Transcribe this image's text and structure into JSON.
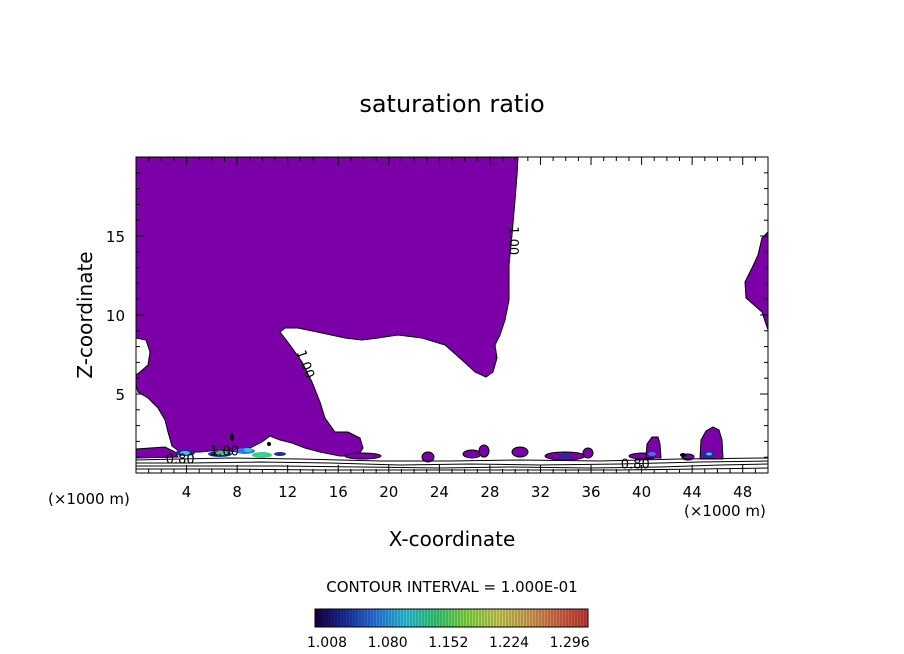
{
  "chart_data": {
    "type": "heatmap",
    "title": "saturation ratio",
    "xlabel": "X-coordinate",
    "ylabel": "Z-coordinate",
    "x_unit_left": "(×1000 m)",
    "x_unit_right": "(×1000 m)",
    "xlim": [
      0,
      50
    ],
    "ylim": [
      0,
      20
    ],
    "x_ticks": [
      4,
      8,
      12,
      16,
      20,
      24,
      28,
      32,
      36,
      40,
      44,
      48
    ],
    "x_tick_labels": [
      "4",
      "8",
      "12",
      "16",
      "20",
      "24",
      "28",
      "32",
      "36",
      "40",
      "44",
      "48"
    ],
    "y_ticks": [
      5,
      10,
      15
    ],
    "y_tick_labels": [
      "5",
      "10",
      "15"
    ],
    "contour_interval_text": "CONTOUR INTERVAL = 1.000E-01",
    "contour_labels": [
      {
        "text": "1.00",
        "x": 29.5,
        "z": 14.7,
        "rotate": 90
      },
      {
        "text": "1.00",
        "x": 13.1,
        "z": 6.8,
        "rotate": 70
      },
      {
        "text": "1.00",
        "x": 7.0,
        "z": 1.1,
        "rotate": 0
      },
      {
        "text": "0.80",
        "x": 3.5,
        "z": 0.6,
        "rotate": 0
      },
      {
        "text": "0.80",
        "x": 39.5,
        "z": 0.3,
        "rotate": 0
      }
    ],
    "fill_color": "#7b00a8",
    "colorbar": {
      "min": 1.008,
      "max": 1.332,
      "tick_values": [
        1.008,
        1.08,
        1.152,
        1.224,
        1.296
      ],
      "tick_labels": [
        "1.008",
        "1.080",
        "1.152",
        "1.224",
        "1.296"
      ],
      "colors": [
        "#1a0040",
        "#1a2f9e",
        "#2e7be8",
        "#33c9e0",
        "#3ccf77",
        "#8ae04a",
        "#c8d45a",
        "#d9a85a",
        "#d86d4a",
        "#c83a3a"
      ]
    },
    "supersaturated_regions": [
      {
        "name": "main-upper-region",
        "x_range": [
          0,
          30
        ],
        "z_range": [
          1,
          20
        ]
      },
      {
        "name": "right-edge-region",
        "x_range": [
          48.8,
          50
        ],
        "z_range": [
          9,
          15
        ]
      },
      {
        "name": "surface-patches",
        "x_range": [
          17,
          46
        ],
        "z_range": [
          0.8,
          2.8
        ]
      }
    ]
  }
}
